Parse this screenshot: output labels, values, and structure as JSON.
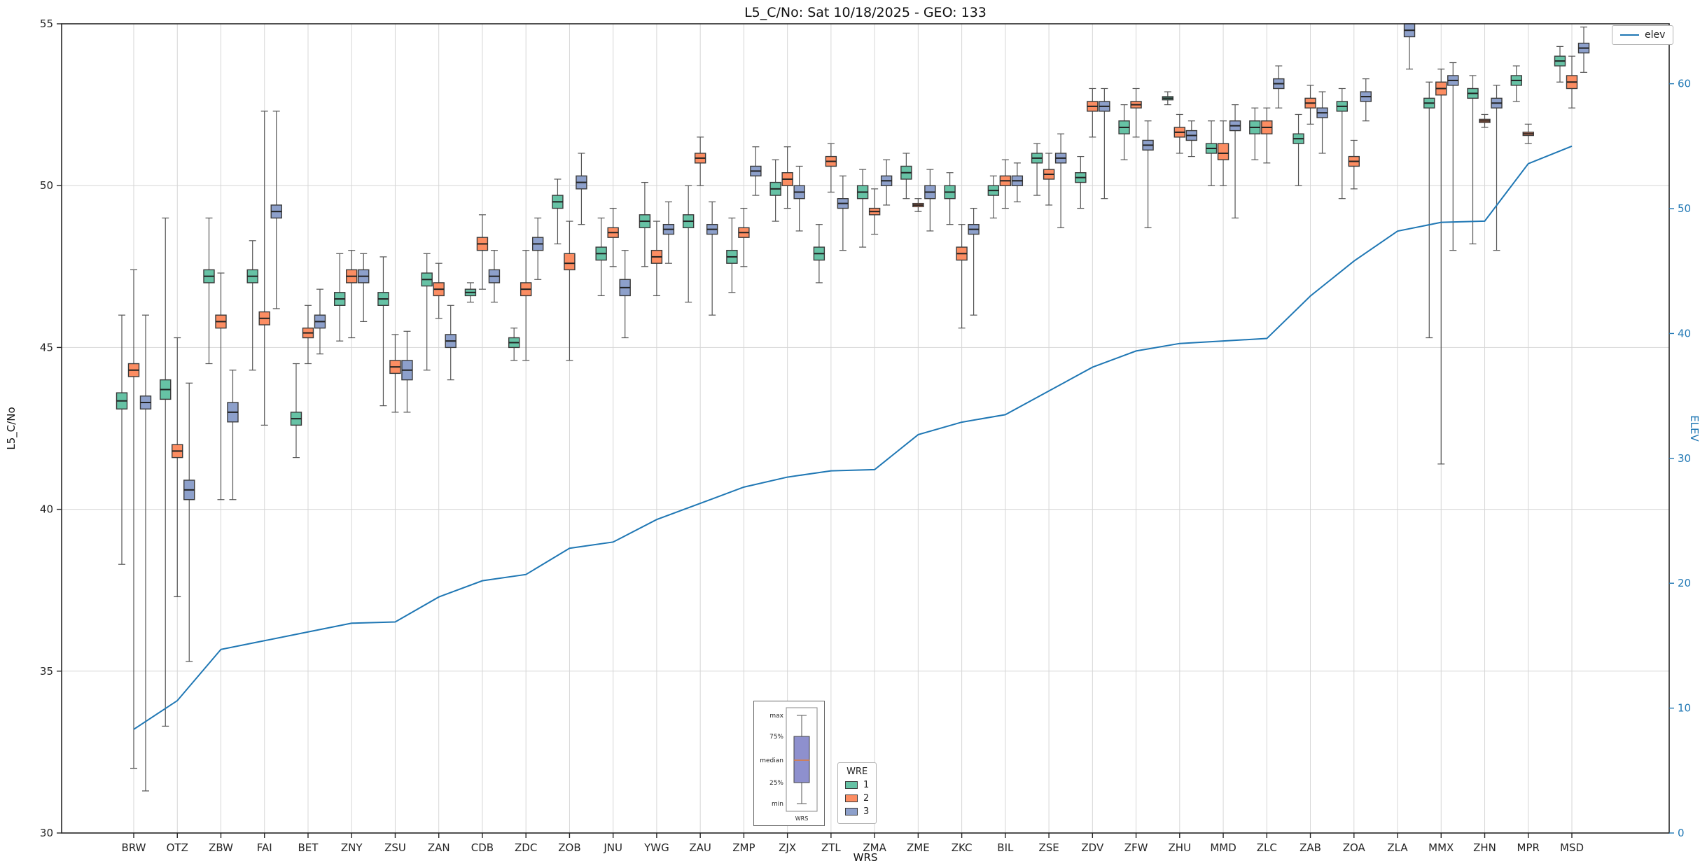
{
  "chart_data": {
    "type": "boxplot+line",
    "title": "L5_C/No: Sat 10/18/2025 - GEO: 133",
    "xlabel": "WRS",
    "ylabel": "L5_C/No",
    "y2label": "ELEV",
    "ylim": [
      30,
      55
    ],
    "y2lim": [
      0,
      64.8
    ],
    "yticks": [
      30,
      35,
      40,
      45,
      50,
      55
    ],
    "y2ticks": [
      0,
      10,
      20,
      30,
      40,
      50,
      60
    ],
    "grid": true,
    "colors": {
      "accent_line": "#1f77b4",
      "grid": "#d6d6d6",
      "box_edge": "#3a3a3a",
      "whisker": "#555555"
    },
    "categories": [
      "BRW",
      "OTZ",
      "ZBW",
      "FAI",
      "BET",
      "ZNY",
      "ZSU",
      "ZAN",
      "CDB",
      "ZDC",
      "ZOB",
      "JNU",
      "YWG",
      "ZAU",
      "ZMP",
      "ZJX",
      "ZTL",
      "ZMA",
      "ZME",
      "ZKC",
      "BIL",
      "ZSE",
      "ZDV",
      "ZFW",
      "ZHU",
      "MMD",
      "ZLC",
      "ZAB",
      "ZOA",
      "ZLA",
      "MMX",
      "ZHN",
      "MPR",
      "MSD"
    ],
    "box_legend_title": "WRE",
    "series": [
      {
        "name": "1",
        "color": "#66c2a5",
        "boxes": [
          [
            38.3,
            43.1,
            43.35,
            43.6,
            46.0
          ],
          [
            33.3,
            43.4,
            43.7,
            44.0,
            49.0
          ],
          [
            44.5,
            47.0,
            47.2,
            47.4,
            49.0
          ],
          [
            44.3,
            47.0,
            47.2,
            47.4,
            48.3
          ],
          [
            41.6,
            42.6,
            42.8,
            43.0,
            44.5
          ],
          [
            45.2,
            46.3,
            46.5,
            46.7,
            47.9
          ],
          [
            43.2,
            46.3,
            46.5,
            46.7,
            47.8
          ],
          [
            44.3,
            46.9,
            47.1,
            47.3,
            47.9
          ],
          [
            46.4,
            46.6,
            46.7,
            46.8,
            47.0
          ],
          [
            44.6,
            45.0,
            45.15,
            45.3,
            45.6
          ],
          [
            48.2,
            49.3,
            49.5,
            49.7,
            50.2
          ],
          [
            46.6,
            47.7,
            47.9,
            48.1,
            49.0
          ],
          [
            47.5,
            48.7,
            48.9,
            49.1,
            50.1
          ],
          [
            46.4,
            48.7,
            48.9,
            49.1,
            50.0
          ],
          [
            46.7,
            47.6,
            47.8,
            48.0,
            49.0
          ],
          [
            48.9,
            49.7,
            49.9,
            50.1,
            50.8
          ],
          [
            47.0,
            47.7,
            47.9,
            48.1,
            48.8
          ],
          [
            48.1,
            49.6,
            49.8,
            50.0,
            50.5
          ],
          [
            49.6,
            50.2,
            50.4,
            50.6,
            51.0
          ],
          [
            48.8,
            49.6,
            49.8,
            50.0,
            50.4
          ],
          [
            49.0,
            49.7,
            49.85,
            50.0,
            50.3
          ],
          [
            49.7,
            50.7,
            50.85,
            51.0,
            51.3
          ],
          [
            49.3,
            50.1,
            50.25,
            50.4,
            50.9
          ],
          [
            50.8,
            51.6,
            51.8,
            52.0,
            52.5
          ],
          [
            52.5,
            52.65,
            52.7,
            52.75,
            52.9
          ],
          [
            50.0,
            51.0,
            51.15,
            51.3,
            52.0
          ],
          [
            50.8,
            51.6,
            51.8,
            52.0,
            52.4
          ],
          [
            50.0,
            51.3,
            51.45,
            51.6,
            52.2
          ],
          [
            49.6,
            52.3,
            52.45,
            52.6,
            53.0
          ],
          null,
          [
            45.3,
            52.4,
            52.55,
            52.7,
            53.2
          ],
          [
            48.2,
            52.7,
            52.85,
            53.0,
            53.4
          ],
          [
            52.6,
            53.1,
            53.25,
            53.4,
            53.7
          ],
          [
            53.2,
            53.7,
            53.85,
            54.0,
            54.3
          ]
        ]
      },
      {
        "name": "2",
        "color": "#fc8d62",
        "boxes": [
          [
            32.0,
            44.1,
            44.3,
            44.5,
            47.4
          ],
          [
            37.3,
            41.6,
            41.8,
            42.0,
            45.3
          ],
          [
            40.3,
            45.6,
            45.8,
            46.0,
            47.3
          ],
          [
            42.6,
            45.7,
            45.9,
            46.1,
            52.3
          ],
          [
            44.5,
            45.3,
            45.45,
            45.6,
            46.3
          ],
          [
            45.3,
            47.0,
            47.2,
            47.4,
            48.0
          ],
          [
            43.0,
            44.2,
            44.4,
            44.6,
            45.4
          ],
          [
            45.9,
            46.6,
            46.8,
            47.0,
            47.6
          ],
          [
            46.8,
            48.0,
            48.2,
            48.4,
            49.1
          ],
          [
            44.6,
            46.6,
            46.8,
            47.0,
            48.0
          ],
          [
            44.6,
            47.4,
            47.6,
            47.9,
            48.9
          ],
          [
            47.5,
            48.4,
            48.55,
            48.7,
            49.3
          ],
          [
            46.6,
            47.6,
            47.8,
            48.0,
            48.9
          ],
          [
            50.0,
            50.7,
            50.85,
            51.0,
            51.5
          ],
          [
            47.5,
            48.4,
            48.55,
            48.7,
            49.3
          ],
          [
            49.3,
            50.0,
            50.2,
            50.4,
            51.2
          ],
          [
            49.8,
            50.6,
            50.75,
            50.9,
            51.3
          ],
          [
            48.5,
            49.1,
            49.2,
            49.3,
            49.9
          ],
          [
            49.2,
            49.35,
            49.4,
            49.45,
            49.6
          ],
          [
            45.6,
            47.7,
            47.9,
            48.1,
            48.8
          ],
          [
            49.3,
            50.0,
            50.15,
            50.3,
            50.8
          ],
          [
            49.4,
            50.2,
            50.35,
            50.5,
            51.0
          ],
          [
            51.5,
            52.3,
            52.45,
            52.6,
            53.0
          ],
          [
            51.5,
            52.4,
            52.5,
            52.6,
            53.0
          ],
          [
            51.0,
            51.5,
            51.65,
            51.8,
            52.2
          ],
          [
            50.0,
            50.8,
            51.0,
            51.3,
            52.0
          ],
          [
            50.7,
            51.6,
            51.8,
            52.0,
            52.4
          ],
          [
            51.9,
            52.4,
            52.55,
            52.7,
            53.1
          ],
          [
            49.9,
            50.6,
            50.75,
            50.9,
            51.4
          ],
          null,
          [
            41.4,
            52.8,
            53.0,
            53.2,
            53.6
          ],
          [
            51.8,
            51.95,
            52.0,
            52.05,
            52.2
          ],
          [
            51.3,
            51.55,
            51.6,
            51.65,
            51.9
          ],
          [
            52.4,
            53.0,
            53.2,
            53.4,
            54.0
          ]
        ]
      },
      {
        "name": "3",
        "color": "#8da0cb",
        "boxes": [
          [
            31.3,
            43.1,
            43.3,
            43.5,
            46.0
          ],
          [
            35.3,
            40.3,
            40.6,
            40.9,
            43.9
          ],
          [
            40.3,
            42.7,
            43.0,
            43.3,
            44.3
          ],
          [
            46.2,
            49.0,
            49.2,
            49.4,
            52.3
          ],
          [
            44.8,
            45.6,
            45.8,
            46.0,
            46.8
          ],
          [
            45.8,
            47.0,
            47.2,
            47.4,
            47.9
          ],
          [
            43.0,
            44.0,
            44.3,
            44.6,
            45.5
          ],
          [
            44.0,
            45.0,
            45.2,
            45.4,
            46.3
          ],
          [
            46.4,
            47.0,
            47.2,
            47.4,
            48.0
          ],
          [
            47.1,
            48.0,
            48.2,
            48.4,
            49.0
          ],
          [
            48.8,
            49.9,
            50.1,
            50.3,
            51.0
          ],
          [
            45.3,
            46.6,
            46.85,
            47.1,
            48.0
          ],
          [
            47.6,
            48.5,
            48.65,
            48.8,
            49.5
          ],
          [
            46.0,
            48.5,
            48.65,
            48.8,
            49.5
          ],
          [
            49.7,
            50.3,
            50.45,
            50.6,
            51.2
          ],
          [
            48.6,
            49.6,
            49.8,
            50.0,
            50.6
          ],
          [
            48.0,
            49.3,
            49.45,
            49.6,
            50.3
          ],
          [
            49.4,
            50.0,
            50.15,
            50.3,
            50.8
          ],
          [
            48.6,
            49.6,
            49.8,
            50.0,
            50.5
          ],
          [
            46.0,
            48.5,
            48.65,
            48.8,
            49.3
          ],
          [
            49.5,
            50.0,
            50.15,
            50.3,
            50.7
          ],
          [
            48.7,
            50.7,
            50.85,
            51.0,
            51.6
          ],
          [
            49.6,
            52.3,
            52.45,
            52.6,
            53.0
          ],
          [
            48.7,
            51.1,
            51.25,
            51.4,
            52.0
          ],
          [
            50.9,
            51.4,
            51.55,
            51.7,
            52.0
          ],
          [
            49.0,
            51.7,
            51.85,
            52.0,
            52.5
          ],
          [
            52.4,
            53.0,
            53.15,
            53.3,
            53.7
          ],
          [
            51.0,
            52.1,
            52.25,
            52.4,
            52.9
          ],
          [
            52.0,
            52.6,
            52.75,
            52.9,
            53.3
          ],
          [
            53.6,
            54.6,
            54.8,
            55.0,
            55.0
          ],
          [
            48.0,
            53.1,
            53.25,
            53.4,
            53.8
          ],
          [
            48.0,
            52.4,
            52.55,
            52.7,
            53.1
          ],
          null,
          [
            53.5,
            54.1,
            54.25,
            54.4,
            54.9
          ]
        ]
      }
    ],
    "elev_series": {
      "name": "elev",
      "color": "#1f77b4",
      "values": [
        8.3,
        10.6,
        14.7,
        15.4,
        16.1,
        16.8,
        16.9,
        18.9,
        20.2,
        20.7,
        22.8,
        23.3,
        25.1,
        26.4,
        27.7,
        28.5,
        29.0,
        29.1,
        31.9,
        32.9,
        33.5,
        35.4,
        37.3,
        38.6,
        39.2,
        39.4,
        39.6,
        43.0,
        45.8,
        48.2,
        48.9,
        49.0,
        53.6,
        55.0
      ]
    },
    "inset": {
      "labels": [
        "max",
        "75%",
        "median",
        "25%",
        "min"
      ],
      "xlabel": "WRS",
      "box_color": "#8e90ce",
      "median_color": "#e07b39"
    }
  }
}
